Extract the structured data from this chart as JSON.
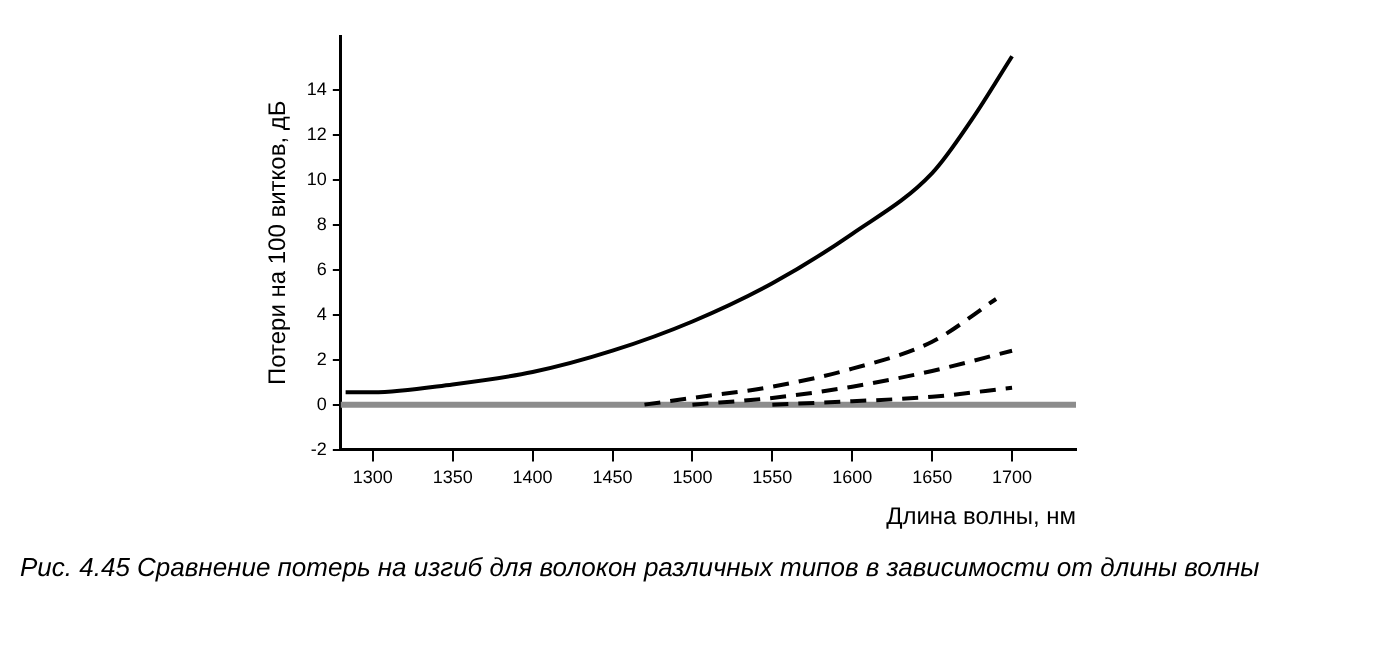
{
  "chart_data": {
    "type": "line",
    "xlabel": "Длина волны, нм",
    "ylabel": "Потери на 100 витков, дБ",
    "xlim": [
      1280,
      1740
    ],
    "xticks": [
      1300,
      1350,
      1400,
      1450,
      1500,
      1550,
      1600,
      1650,
      1700
    ],
    "ylim": [
      -2,
      16.4
    ],
    "yticks": [
      -2,
      0,
      2,
      4,
      6,
      8,
      10,
      12,
      14
    ],
    "grid": false,
    "legend": false,
    "marker": "none",
    "series": [
      {
        "color": "#000000",
        "line_style": "solid",
        "x": [
          1283,
          1300,
          1350,
          1400,
          1450,
          1500,
          1550,
          1600,
          1650,
          1675,
          1700
        ],
        "values": [
          0.55,
          0.55,
          0.9,
          1.45,
          2.4,
          3.7,
          5.4,
          7.6,
          10.3,
          12.7,
          15.5
        ]
      },
      {
        "color": "#000000",
        "line_style": "dashed",
        "x": [
          1470,
          1500,
          1550,
          1600,
          1650,
          1690
        ],
        "values": [
          0,
          0.3,
          0.8,
          1.6,
          2.8,
          4.7
        ]
      },
      {
        "color": "#000000",
        "line_style": "dashed",
        "x": [
          1500,
          1550,
          1600,
          1650,
          1700
        ],
        "values": [
          0,
          0.3,
          0.8,
          1.5,
          2.4
        ]
      },
      {
        "color": "#000000",
        "line_style": "dashed",
        "x": [
          1550,
          1600,
          1650,
          1700
        ],
        "values": [
          0,
          0.15,
          0.35,
          0.75
        ]
      }
    ],
    "ref_lines": [
      {
        "axis": "y",
        "value": 0,
        "color": "#8c8c8c"
      }
    ],
    "annotations": [
      "Рис. 4.45 Сравнение потерь на изгиб для волокон различных типов в зависимости от длины волны"
    ]
  }
}
